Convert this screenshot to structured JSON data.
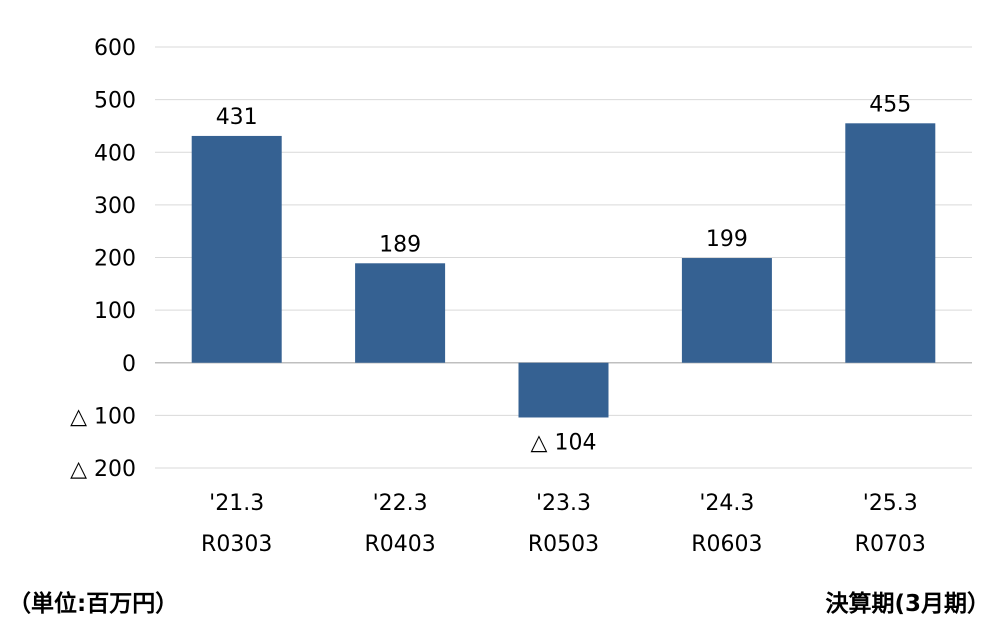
{
  "chart_data": {
    "type": "bar",
    "categories": [
      {
        "fy": "'21.3",
        "code": "R0303"
      },
      {
        "fy": "'22.3",
        "code": "R0403"
      },
      {
        "fy": "'23.3",
        "code": "R0503"
      },
      {
        "fy": "'24.3",
        "code": "R0603"
      },
      {
        "fy": "'25.3",
        "code": "R0703"
      }
    ],
    "values": [
      431,
      189,
      -104,
      199,
      455
    ],
    "value_labels": [
      "431",
      "189",
      "△ 104",
      "199",
      "455"
    ],
    "ylim": [
      -200,
      600
    ],
    "yticks": [
      {
        "value": 600,
        "label": "600"
      },
      {
        "value": 500,
        "label": "500"
      },
      {
        "value": 400,
        "label": "400"
      },
      {
        "value": 300,
        "label": "300"
      },
      {
        "value": 200,
        "label": "200"
      },
      {
        "value": 100,
        "label": "100"
      },
      {
        "value": 0,
        "label": "0"
      },
      {
        "value": -100,
        "label": "△ 100"
      },
      {
        "value": -200,
        "label": "△ 200"
      }
    ],
    "grid": true,
    "bar_color": "#356192",
    "ylabel": "（単位:百万円）",
    "xlabel": "決算期(3月期）"
  }
}
